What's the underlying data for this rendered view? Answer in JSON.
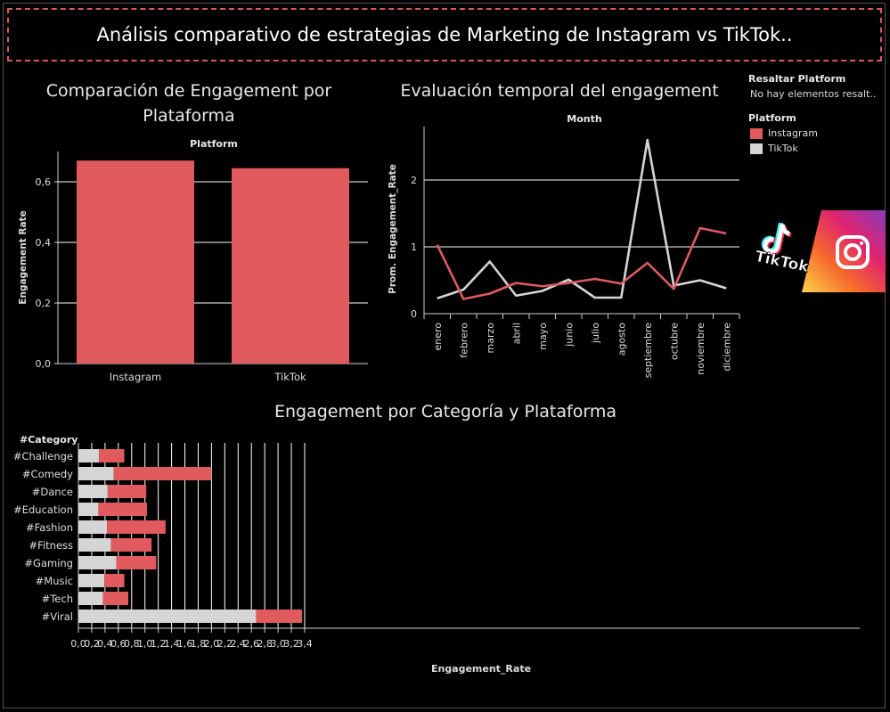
{
  "header": {
    "title": "Análisis comparativo de estrategias de Marketing de Instagram vs TikTok.."
  },
  "colors": {
    "instagram": "#e05a5e",
    "tiktok": "#d5d5d5",
    "grid": "#ffffff",
    "axis": "#cfcfcf"
  },
  "legend": {
    "highlight_title": "Resaltar Platform",
    "highlight_value": "No hay elementos resalt..",
    "platform_title": "Platform",
    "items": [
      {
        "label": "Instagram",
        "color": "#e05a5e"
      },
      {
        "label": "TikTok",
        "color": "#d5d5d5"
      }
    ]
  },
  "logo": {
    "tiktok_text": "TikTok"
  },
  "chart_data": [
    {
      "type": "bar",
      "title": "Comparación de Engagement por Plataforma",
      "title_lines": [
        "Comparación de Engagement por",
        "Plataforma"
      ],
      "header": "Platform",
      "categories": [
        "Instagram",
        "TikTok"
      ],
      "values": [
        0.67,
        0.645
      ],
      "ylabel": "Engagement Rate",
      "ylim": [
        0,
        0.7
      ],
      "yticks": [
        0,
        0.2,
        0.4,
        0.6
      ],
      "ytick_labels": [
        "0,0",
        "0,2",
        "0,4",
        "0,6"
      ]
    },
    {
      "type": "line",
      "title": "Evaluación temporal del engagement",
      "header": "Month",
      "categories": [
        "enero",
        "febrero",
        "marzo",
        "abril",
        "mayo",
        "junio",
        "julio",
        "agosto",
        "septiembre",
        "octubre",
        "noviembre",
        "diciembre"
      ],
      "series": [
        {
          "name": "Instagram",
          "values": [
            1.03,
            0.22,
            0.3,
            0.46,
            0.41,
            0.46,
            0.52,
            0.45,
            0.76,
            0.37,
            1.28,
            1.2
          ]
        },
        {
          "name": "TikTok",
          "values": [
            0.23,
            0.36,
            0.78,
            0.27,
            0.34,
            0.51,
            0.24,
            0.24,
            2.6,
            0.42,
            0.5,
            0.38
          ]
        }
      ],
      "ylabel": "Prom. Engagement_Rate",
      "ylim": [
        0,
        2.8
      ],
      "yticks": [
        0,
        1,
        2
      ],
      "ytick_labels": [
        "0",
        "1",
        "2"
      ]
    },
    {
      "type": "bar",
      "orientation": "horizontal",
      "stacked": true,
      "title": "Engagement por Categoría y Plataforma",
      "header": "#Category",
      "categories": [
        "#Challenge",
        "#Comedy",
        "#Dance",
        "#Education",
        "#Fashion",
        "#Fitness",
        "#Gaming",
        "#Music",
        "#Tech",
        "#Viral"
      ],
      "series": [
        {
          "name": "TikTok",
          "values": [
            0.31,
            0.53,
            0.44,
            0.3,
            0.43,
            0.49,
            0.57,
            0.39,
            0.37,
            2.67
          ]
        },
        {
          "name": "Instagram",
          "values": [
            0.38,
            1.47,
            0.58,
            0.73,
            0.88,
            0.61,
            0.6,
            0.3,
            0.38,
            0.69
          ]
        }
      ],
      "xlabel": "Engagement_Rate",
      "xlim": [
        0,
        3.4
      ],
      "xticks": [
        0,
        0.2,
        0.4,
        0.6,
        0.8,
        1.0,
        1.2,
        1.4,
        1.6,
        1.8,
        2.0,
        2.2,
        2.4,
        2.6,
        2.8,
        3.0,
        3.2,
        3.4
      ],
      "xtick_labels": [
        "0,0",
        "0,2",
        "0,4",
        "0,6",
        "0,8",
        "1,0",
        "1,2",
        "1,4",
        "1,6",
        "1,8",
        "2,0",
        "2,2",
        "2,4",
        "2,6",
        "2,8",
        "3,0",
        "3,2",
        "3,4"
      ]
    }
  ]
}
